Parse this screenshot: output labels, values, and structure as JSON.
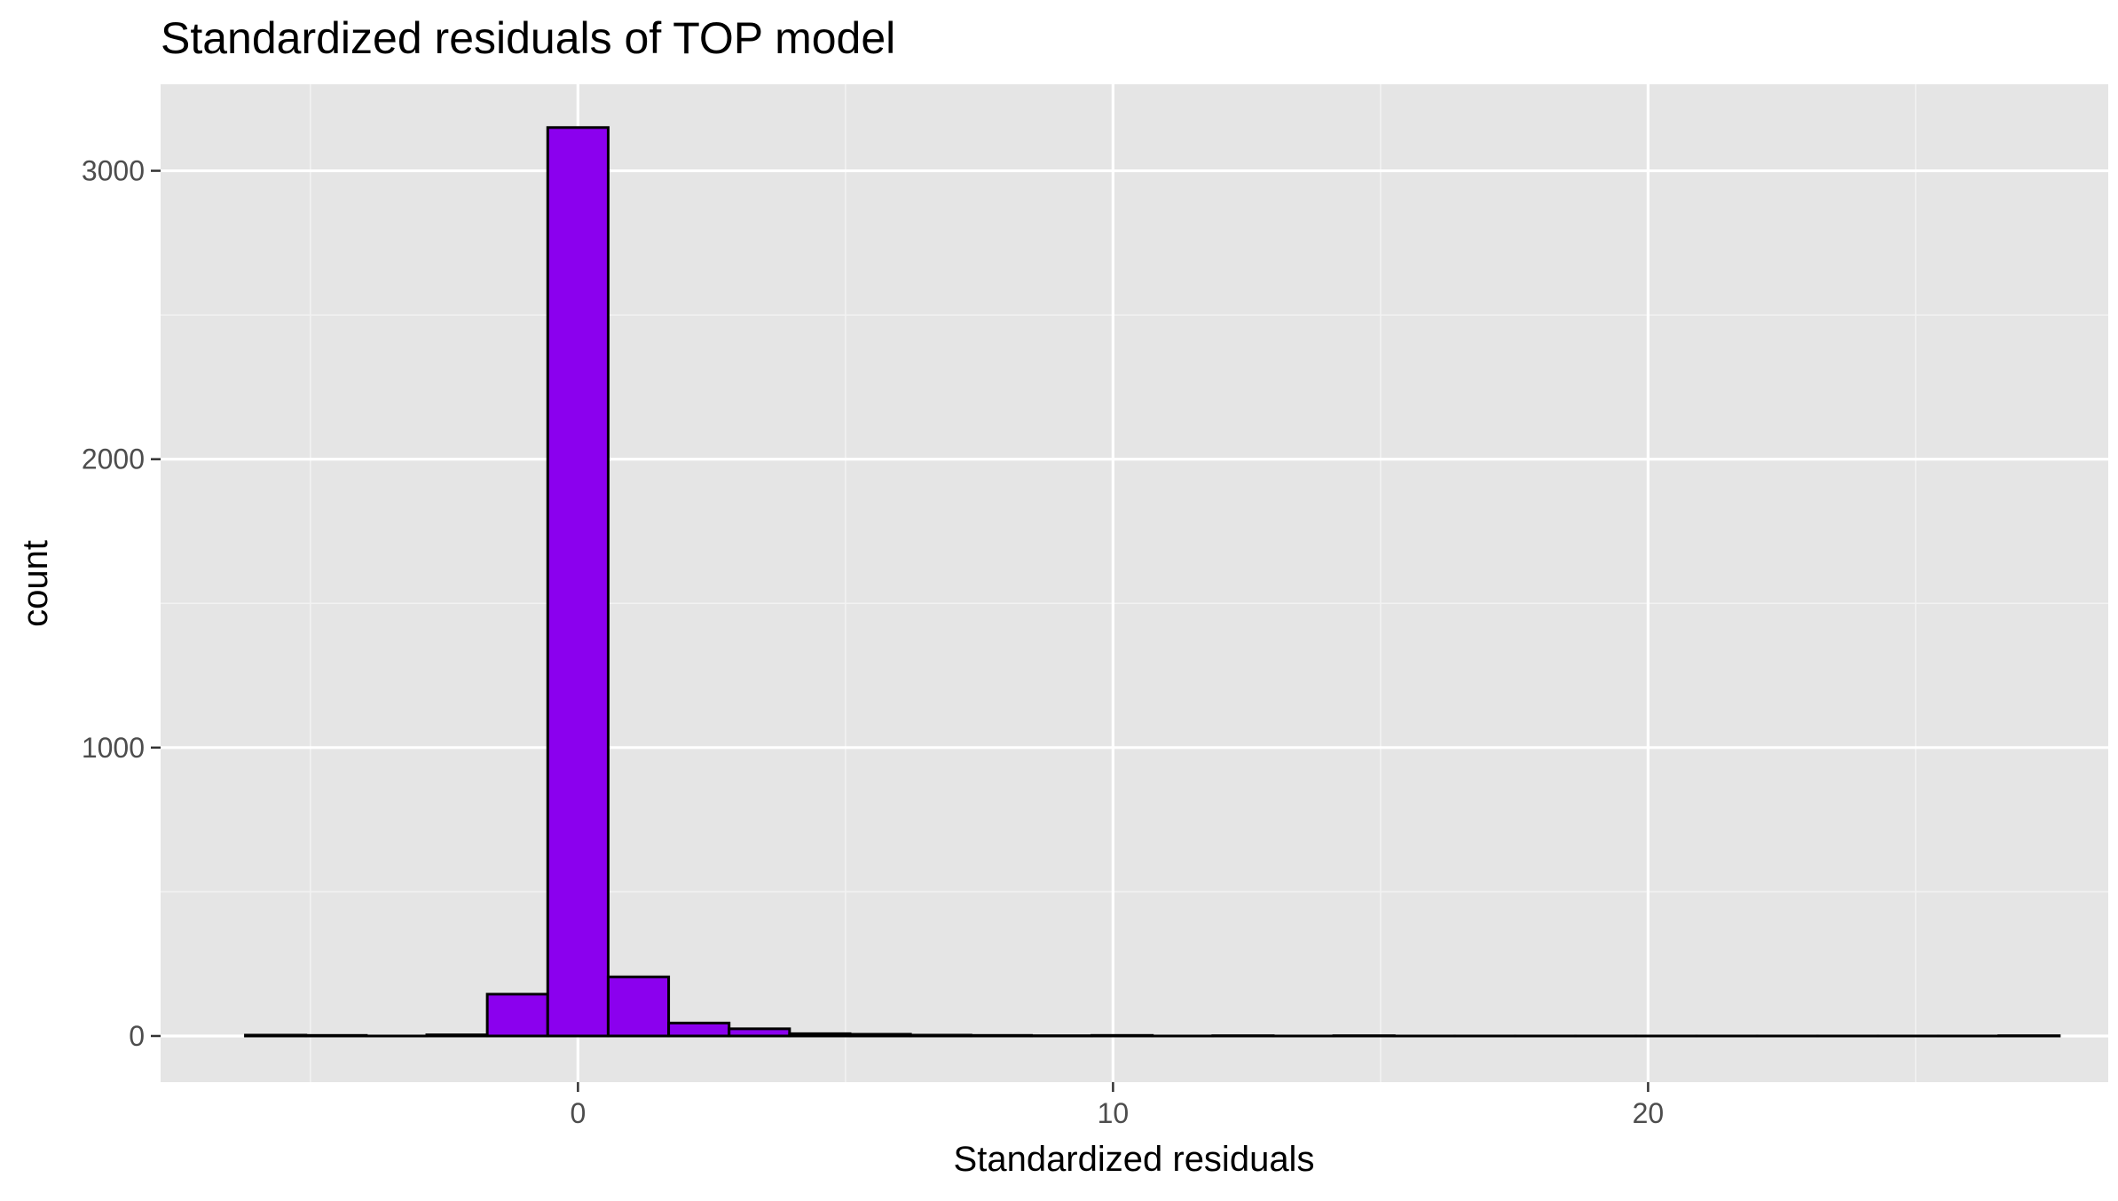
{
  "chart_data": {
    "type": "bar",
    "title": "Standardized residuals of TOP model",
    "xlabel": "Standardized residuals",
    "ylabel": "count",
    "xlim": [
      -7.8,
      28.6
    ],
    "ylim": [
      -160,
      3300
    ],
    "x_ticks": [
      0,
      10,
      20
    ],
    "y_ticks": [
      0,
      1000,
      2000,
      3000
    ],
    "x_minor_ticks": [
      -5,
      5,
      15,
      25
    ],
    "y_minor_ticks": [
      500,
      1500,
      2500
    ],
    "grid": true,
    "bin_width": 1.13,
    "bins": [
      {
        "x": -5.65,
        "count": 3
      },
      {
        "x": -4.52,
        "count": 2
      },
      {
        "x": -3.39,
        "count": 0
      },
      {
        "x": -2.26,
        "count": 4
      },
      {
        "x": -1.13,
        "count": 145
      },
      {
        "x": 0.0,
        "count": 3150
      },
      {
        "x": 1.13,
        "count": 205
      },
      {
        "x": 2.26,
        "count": 45
      },
      {
        "x": 3.39,
        "count": 25
      },
      {
        "x": 4.52,
        "count": 8
      },
      {
        "x": 5.65,
        "count": 6
      },
      {
        "x": 6.78,
        "count": 3
      },
      {
        "x": 7.91,
        "count": 2
      },
      {
        "x": 9.04,
        "count": 1
      },
      {
        "x": 10.17,
        "count": 2
      },
      {
        "x": 11.3,
        "count": 0
      },
      {
        "x": 12.43,
        "count": 1
      },
      {
        "x": 13.56,
        "count": 0
      },
      {
        "x": 14.69,
        "count": 1
      },
      {
        "x": 15.82,
        "count": 0
      },
      {
        "x": 16.95,
        "count": 0
      },
      {
        "x": 18.08,
        "count": 0
      },
      {
        "x": 19.21,
        "count": 0
      },
      {
        "x": 20.34,
        "count": 0
      },
      {
        "x": 21.47,
        "count": 0
      },
      {
        "x": 22.6,
        "count": 0
      },
      {
        "x": 23.73,
        "count": 0
      },
      {
        "x": 24.86,
        "count": 0
      },
      {
        "x": 25.99,
        "count": 0
      },
      {
        "x": 27.12,
        "count": 1
      }
    ],
    "colors": {
      "panel_background": "#e5e5e5",
      "grid_major": "#ffffff",
      "grid_minor": "#f2f2f2",
      "bar_fill": "#8b00ee",
      "bar_stroke": "#000000"
    }
  }
}
